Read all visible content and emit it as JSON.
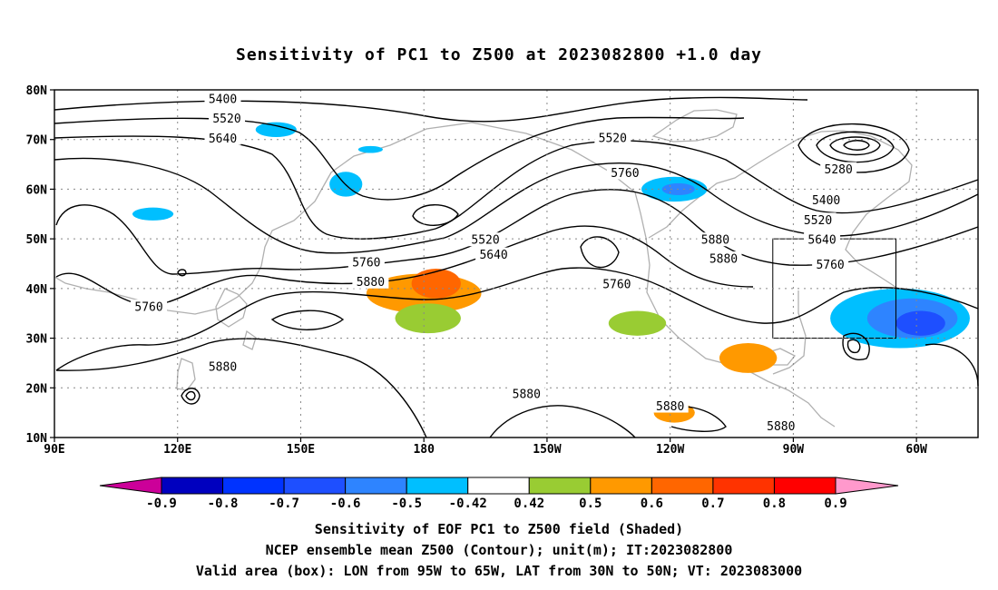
{
  "title": "Sensitivity of PC1 to Z500 at 2023082800 +1.0 day",
  "axes": {
    "lat_labels": [
      "80N",
      "70N",
      "60N",
      "50N",
      "40N",
      "30N",
      "20N",
      "10N"
    ],
    "lon_labels": [
      "90E",
      "120E",
      "150E",
      "180",
      "150W",
      "120W",
      "90W",
      "60W"
    ],
    "lat_values": [
      80,
      70,
      60,
      50,
      40,
      30,
      20,
      10
    ],
    "lon_values": [
      90,
      120,
      150,
      180,
      210,
      240,
      270,
      300
    ],
    "lon_range": [
      90,
      315
    ],
    "lat_range": [
      10,
      80
    ],
    "grid": true
  },
  "contour_labels": [
    {
      "text": "5400",
      "lon": 131,
      "lat": 78.2
    },
    {
      "text": "5520",
      "lon": 132,
      "lat": 74.2
    },
    {
      "text": "5640",
      "lon": 131,
      "lat": 70.2
    },
    {
      "text": "5520",
      "lon": 226,
      "lat": 70.3
    },
    {
      "text": "5760",
      "lon": 229,
      "lat": 63.3
    },
    {
      "text": "5280",
      "lon": 281,
      "lat": 64
    },
    {
      "text": "5400",
      "lon": 278,
      "lat": 57.8
    },
    {
      "text": "5520",
      "lon": 276,
      "lat": 53.8
    },
    {
      "text": "5520",
      "lon": 195,
      "lat": 49.8
    },
    {
      "text": "5640",
      "lon": 197,
      "lat": 46.8
    },
    {
      "text": "5880",
      "lon": 251,
      "lat": 49.8
    },
    {
      "text": "5880",
      "lon": 253,
      "lat": 46
    },
    {
      "text": "5640",
      "lon": 277,
      "lat": 49.8
    },
    {
      "text": "5760",
      "lon": 279,
      "lat": 44.8
    },
    {
      "text": "5760",
      "lon": 166,
      "lat": 45.3
    },
    {
      "text": "5880",
      "lon": 167,
      "lat": 41.3
    },
    {
      "text": "5760",
      "lon": 227,
      "lat": 40.9
    },
    {
      "text": "5760",
      "lon": 113,
      "lat": 36.3
    },
    {
      "text": "5880",
      "lon": 131,
      "lat": 24.3
    },
    {
      "text": "5880",
      "lon": 205,
      "lat": 18.8
    },
    {
      "text": "5880",
      "lon": 240,
      "lat": 16.3
    },
    {
      "text": "5880",
      "lon": 267,
      "lat": 12.3
    }
  ],
  "colorbar": {
    "labels": [
      "-0.9",
      "-0.8",
      "-0.7",
      "-0.6",
      "-0.5",
      "-0.42",
      "0.42",
      "0.5",
      "0.6",
      "0.7",
      "0.8",
      "0.9"
    ],
    "colors": [
      "#0000bf",
      "#0033ff",
      "#1e4fff",
      "#2e84ff",
      "#00bfff",
      "#ffffff",
      "#99cc33",
      "#ff9900",
      "#ff6600",
      "#ff3300",
      "#ff0000"
    ],
    "low_end_color": "#cc0099",
    "high_end_color": "#ff99cc"
  },
  "captions": [
    "Sensitivity of EOF PC1 to Z500 field (Shaded)",
    "NCEP ensemble mean Z500 (Contour); unit(m); IT:2023082800",
    "Valid area (box): LON from 95W to 65W, LAT from 30N to 50N; VT: 2023083000"
  ],
  "valid_box": {
    "lon_min": 265,
    "lon_max": 295,
    "lat_min": 30,
    "lat_max": 50
  },
  "shaded_regions": [
    {
      "lon": 180,
      "lat": 39,
      "rx": 14,
      "ry": 4,
      "level": "0.6",
      "color": "#ff9900"
    },
    {
      "lon": 183,
      "lat": 41,
      "rx": 6,
      "ry": 3,
      "level": "0.7",
      "color": "#ff6600"
    },
    {
      "lon": 181,
      "lat": 34,
      "rx": 8,
      "ry": 3,
      "level": "0.5",
      "color": "#99cc33"
    },
    {
      "lon": 232,
      "lat": 33,
      "rx": 7,
      "ry": 2.5,
      "level": "0.5",
      "color": "#99cc33"
    },
    {
      "lon": 259,
      "lat": 26,
      "rx": 7,
      "ry": 3,
      "level": "0.6",
      "color": "#ff9900"
    },
    {
      "lon": 241,
      "lat": 15,
      "rx": 5,
      "ry": 2,
      "level": "0.6",
      "color": "#ff9900"
    },
    {
      "lon": 296,
      "lat": 34,
      "rx": 17,
      "ry": 6,
      "level": "-0.5",
      "color": "#00bfff"
    },
    {
      "lon": 299,
      "lat": 34,
      "rx": 11,
      "ry": 4,
      "level": "-0.6",
      "color": "#2e84ff"
    },
    {
      "lon": 301,
      "lat": 33,
      "rx": 6,
      "ry": 2.5,
      "level": "-0.7",
      "color": "#1e4fff"
    },
    {
      "lon": 241,
      "lat": 60,
      "rx": 8,
      "ry": 2.5,
      "level": "-0.5",
      "color": "#00bfff"
    },
    {
      "lon": 242,
      "lat": 60,
      "rx": 4,
      "ry": 1.2,
      "level": "-0.6",
      "color": "#2e84ff"
    },
    {
      "lon": 161,
      "lat": 61,
      "rx": 4,
      "ry": 2.5,
      "level": "-0.5",
      "color": "#00bfff"
    },
    {
      "lon": 144,
      "lat": 72,
      "rx": 5,
      "ry": 1.5,
      "level": "-0.5",
      "color": "#00bfff"
    },
    {
      "lon": 114,
      "lat": 55,
      "rx": 5,
      "ry": 1.3,
      "level": "-0.5",
      "color": "#00bfff"
    },
    {
      "lon": 167,
      "lat": 68,
      "rx": 3,
      "ry": 0.7,
      "level": "-0.5",
      "color": "#00bfff"
    }
  ]
}
